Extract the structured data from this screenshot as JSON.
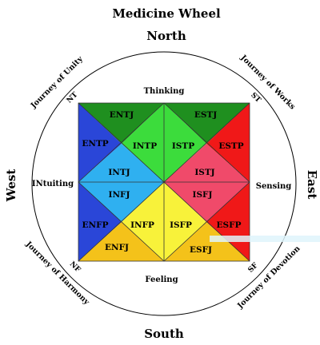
{
  "title": "Medicine Wheel",
  "directions": {
    "north": "North",
    "south": "South",
    "east": "East",
    "west": "West"
  },
  "functions": {
    "top": "Thinking",
    "bottom": "Feeling",
    "left": "INtuiting",
    "right": "Sensing"
  },
  "corners": {
    "nt": "NT",
    "st": "ST",
    "nf": "NF",
    "sf": "SF"
  },
  "journeys": {
    "unity": "Journey of Unity",
    "works": "Journey of Works",
    "harmony": "Journey of Harmony",
    "devotion": "Journey of Devotion"
  },
  "types": {
    "entj": "ENTJ",
    "estj": "ESTJ",
    "entp": "ENTP",
    "intp": "INTP",
    "istp": "ISTP",
    "estp": "ESTP",
    "intj": "INTJ",
    "istj": "ISTJ",
    "infj": "INFJ",
    "isfj": "ISFJ",
    "enfp": "ENFP",
    "infp": "INFP",
    "isfp": "ISFP",
    "esfp": "ESFP",
    "enfj": "ENFJ",
    "esfj": "ESFJ"
  },
  "colors": {
    "dark_green": "#1f8f1f",
    "light_green": "#3cdc3c",
    "blue": "#2a46d8",
    "light_blue": "#2fb0f0",
    "red": "#f01818",
    "pink": "#f04a6a",
    "yellow": "#f8f23a",
    "gold": "#f4c21a"
  }
}
